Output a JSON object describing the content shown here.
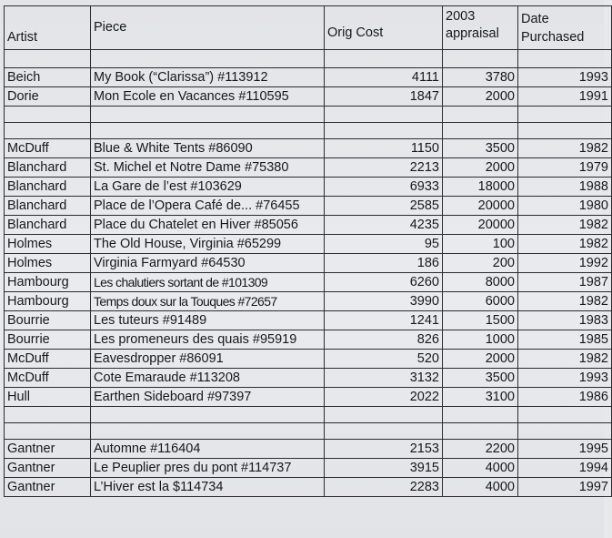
{
  "headers": {
    "artist": "Artist",
    "piece": "Piece",
    "orig_cost": "Orig Cost",
    "appraisal_line1": "2003",
    "appraisal_line2": "appraisal",
    "purchased_line1": "Date",
    "purchased_line2": "Purchased"
  },
  "groups": [
    {
      "rows": [
        {
          "artist": "Beich",
          "piece": "My Book (“Clarissa”) #113912",
          "orig_cost": "4111",
          "appraisal": "3780",
          "purchased": "1993"
        },
        {
          "artist": "Dorie",
          "piece": "Mon Ecole en Vacances #110595",
          "orig_cost": "1847",
          "appraisal": "2000",
          "purchased": "1991"
        }
      ]
    },
    {
      "rows": [
        {
          "artist": "McDuff",
          "piece": "Blue & White Tents #86090",
          "orig_cost": "1150",
          "appraisal": "3500",
          "purchased": "1982"
        },
        {
          "artist": "Blanchard",
          "piece": "St. Michel et Notre Dame #75380",
          "orig_cost": "2213",
          "appraisal": "2000",
          "purchased": "1979"
        },
        {
          "artist": "Blanchard",
          "piece": "La Gare de l’est #103629",
          "orig_cost": "6933",
          "appraisal": "18000",
          "purchased": "1988"
        },
        {
          "artist": "Blanchard",
          "piece": "Place de l’Opera Café de... #76455",
          "orig_cost": "2585",
          "appraisal": "20000",
          "purchased": "1980"
        },
        {
          "artist": "Blanchard",
          "piece": "Place du  Chatelet en Hiver  #85056",
          "orig_cost": "4235",
          "appraisal": "20000",
          "purchased": "1982"
        },
        {
          "artist": "Holmes",
          "piece": "The Old House, Virginia #65299",
          "orig_cost": "95",
          "appraisal": "100",
          "purchased": "1982"
        },
        {
          "artist": "Holmes",
          "piece": "Virginia Farmyard #64530",
          "orig_cost": "186",
          "appraisal": "200",
          "purchased": "1992"
        },
        {
          "artist": "Hambourg",
          "piece": "Les chalutiers sortant de #101309",
          "orig_cost": "6260",
          "appraisal": "8000",
          "purchased": "1987"
        },
        {
          "artist": "Hambourg",
          "piece": "Temps doux sur la Touques #72657",
          "orig_cost": "3990",
          "appraisal": "6000",
          "purchased": "1982"
        },
        {
          "artist": "Bourrie",
          "piece": "Les tuteurs #91489",
          "orig_cost": "1241",
          "appraisal": "1500",
          "purchased": "1983"
        },
        {
          "artist": "Bourrie",
          "piece": "Les promeneurs des quais #95919",
          "orig_cost": "826",
          "appraisal": "1000",
          "purchased": "1985"
        },
        {
          "artist": "McDuff",
          "piece": "Eavesdropper #86091",
          "orig_cost": "520",
          "appraisal": "2000",
          "purchased": "1982"
        },
        {
          "artist": "McDuff",
          "piece": "Cote Emaraude #113208",
          "orig_cost": "3132",
          "appraisal": "3500",
          "purchased": "1993"
        },
        {
          "artist": "Hull",
          "piece": "Earthen Sideboard #97397",
          "orig_cost": "2022",
          "appraisal": "3100",
          "purchased": "1986"
        }
      ]
    },
    {
      "rows": [
        {
          "artist": "Gantner",
          "piece": "Automne #116404",
          "orig_cost": "2153",
          "appraisal": "2200",
          "purchased": "1995"
        },
        {
          "artist": "Gantner",
          "piece": "Le Peuplier pres du pont #114737",
          "orig_cost": "3915",
          "appraisal": "4000",
          "purchased": "1994"
        },
        {
          "artist": "Gantner",
          "piece": "L’Hiver est la  $114734",
          "orig_cost": "2283",
          "appraisal": "4000",
          "purchased": "1997"
        }
      ]
    }
  ]
}
